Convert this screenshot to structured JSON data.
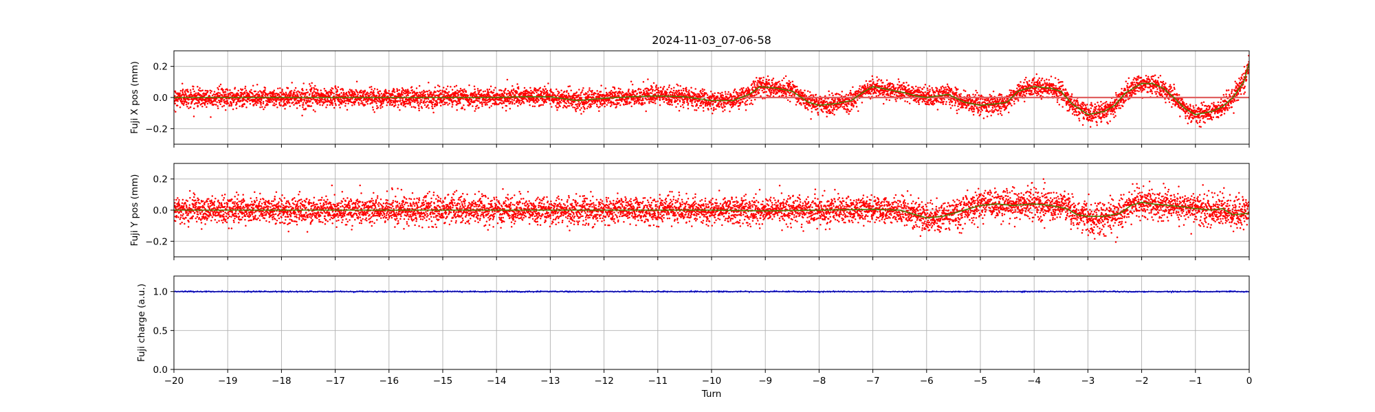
{
  "chart_data": {
    "type": "scatter",
    "title": "2024-11-03_07-06-58",
    "xlabel": "Turn",
    "xlim": [
      -20,
      0
    ],
    "x_ticks": [
      -20,
      -19,
      -18,
      -17,
      -16,
      -15,
      -14,
      -13,
      -12,
      -11,
      -10,
      -9,
      -8,
      -7,
      -6,
      -5,
      -4,
      -3,
      -2,
      -1,
      0
    ],
    "x_tick_labels": [
      "−20",
      "−19",
      "−18",
      "−17",
      "−16",
      "−15",
      "−14",
      "−13",
      "−12",
      "−11",
      "−10",
      "−9",
      "−8",
      "−7",
      "−6",
      "−5",
      "−4",
      "−3",
      "−2",
      "−1",
      "0"
    ],
    "grid": true,
    "panels": [
      {
        "ylabel": "Fuji X pos (mm)",
        "ylim": [
          -0.3,
          0.3
        ],
        "y_ticks": [
          -0.2,
          0.0,
          0.2
        ],
        "y_tick_labels": [
          "−0.2",
          "0.0",
          "0.2"
        ],
        "scatter_color": "#ff0000",
        "trend_color": "#4a7a00",
        "reference_color": "#e06060",
        "reference_from_x": -9.5,
        "reference_value": 0.0,
        "noise": 0.03,
        "trend": [
          [
            -20,
            0.0
          ],
          [
            -19,
            0.0
          ],
          [
            -18,
            0.0
          ],
          [
            -17,
            0.0
          ],
          [
            -16,
            0.0
          ],
          [
            -15,
            0.0
          ],
          [
            -14,
            0.0
          ],
          [
            -13.5,
            0.005
          ],
          [
            -13,
            0.005
          ],
          [
            -12.5,
            -0.02
          ],
          [
            -12,
            -0.005
          ],
          [
            -11.5,
            0.005
          ],
          [
            -11,
            0.01
          ],
          [
            -10.5,
            0.005
          ],
          [
            -10,
            -0.02
          ],
          [
            -9.6,
            -0.02
          ],
          [
            -9.3,
            0.02
          ],
          [
            -9.1,
            0.07
          ],
          [
            -8.8,
            0.06
          ],
          [
            -8.5,
            0.04
          ],
          [
            -8.2,
            -0.03
          ],
          [
            -8.0,
            -0.05
          ],
          [
            -7.7,
            -0.04
          ],
          [
            -7.4,
            -0.02
          ],
          [
            -7.2,
            0.03
          ],
          [
            -7.0,
            0.07
          ],
          [
            -6.7,
            0.05
          ],
          [
            -6.4,
            0.03
          ],
          [
            -6.2,
            0.01
          ],
          [
            -6.0,
            0.0
          ],
          [
            -5.8,
            0.01
          ],
          [
            -5.6,
            0.02
          ],
          [
            -5.3,
            -0.03
          ],
          [
            -5.0,
            -0.05
          ],
          [
            -4.7,
            -0.04
          ],
          [
            -4.5,
            -0.03
          ],
          [
            -4.3,
            0.04
          ],
          [
            -4.0,
            0.07
          ],
          [
            -3.7,
            0.06
          ],
          [
            -3.5,
            0.04
          ],
          [
            -3.3,
            -0.04
          ],
          [
            -3.0,
            -0.11
          ],
          [
            -2.7,
            -0.09
          ],
          [
            -2.5,
            -0.05
          ],
          [
            -2.3,
            0.03
          ],
          [
            -2.0,
            0.09
          ],
          [
            -1.8,
            0.09
          ],
          [
            -1.6,
            0.06
          ],
          [
            -1.4,
            0.0
          ],
          [
            -1.2,
            -0.07
          ],
          [
            -1.0,
            -0.11
          ],
          [
            -0.7,
            -0.09
          ],
          [
            -0.5,
            -0.06
          ],
          [
            -0.3,
            0.0
          ],
          [
            -0.1,
            0.1
          ],
          [
            0,
            0.22
          ]
        ]
      },
      {
        "ylabel": "Fuji Y pos (mm)",
        "ylim": [
          -0.3,
          0.3
        ],
        "y_ticks": [
          -0.2,
          0.0,
          0.2
        ],
        "y_tick_labels": [
          "−0.2",
          "0.0",
          "0.2"
        ],
        "scatter_color": "#ff0000",
        "trend_color": "#4a7a00",
        "noise": 0.042,
        "trend": [
          [
            -20,
            0.0
          ],
          [
            -18,
            0.0
          ],
          [
            -16,
            0.0
          ],
          [
            -14,
            0.0
          ],
          [
            -12,
            0.0
          ],
          [
            -10,
            0.0
          ],
          [
            -9,
            -0.005
          ],
          [
            -8,
            0.0
          ],
          [
            -7,
            0.005
          ],
          [
            -6.5,
            0.0
          ],
          [
            -6.2,
            -0.03
          ],
          [
            -6.0,
            -0.05
          ],
          [
            -5.7,
            -0.04
          ],
          [
            -5.4,
            -0.01
          ],
          [
            -5.0,
            0.03
          ],
          [
            -4.7,
            0.04
          ],
          [
            -4.4,
            0.03
          ],
          [
            -4.0,
            0.04
          ],
          [
            -3.7,
            0.03
          ],
          [
            -3.4,
            0.01
          ],
          [
            -3.2,
            -0.03
          ],
          [
            -3.0,
            -0.04
          ],
          [
            -2.7,
            -0.04
          ],
          [
            -2.4,
            -0.02
          ],
          [
            -2.2,
            0.03
          ],
          [
            -2.0,
            0.05
          ],
          [
            -1.8,
            0.04
          ],
          [
            -1.5,
            0.03
          ],
          [
            -1.2,
            0.02
          ],
          [
            -1.0,
            0.01
          ],
          [
            -0.7,
            0.0
          ],
          [
            -0.5,
            0.01
          ],
          [
            -0.3,
            -0.03
          ],
          [
            0,
            -0.02
          ]
        ]
      },
      {
        "ylabel": "Fuji charge (a.u.)",
        "ylim": [
          0.0,
          1.2
        ],
        "y_ticks": [
          0.0,
          0.5,
          1.0
        ],
        "y_tick_labels": [
          "0.0",
          "0.5",
          "1.0"
        ],
        "scatter_color": "#0000ff",
        "trend_color": "#000080",
        "noise": 0.004,
        "trend": [
          [
            -20,
            1.0
          ],
          [
            0,
            1.0
          ]
        ]
      }
    ]
  }
}
